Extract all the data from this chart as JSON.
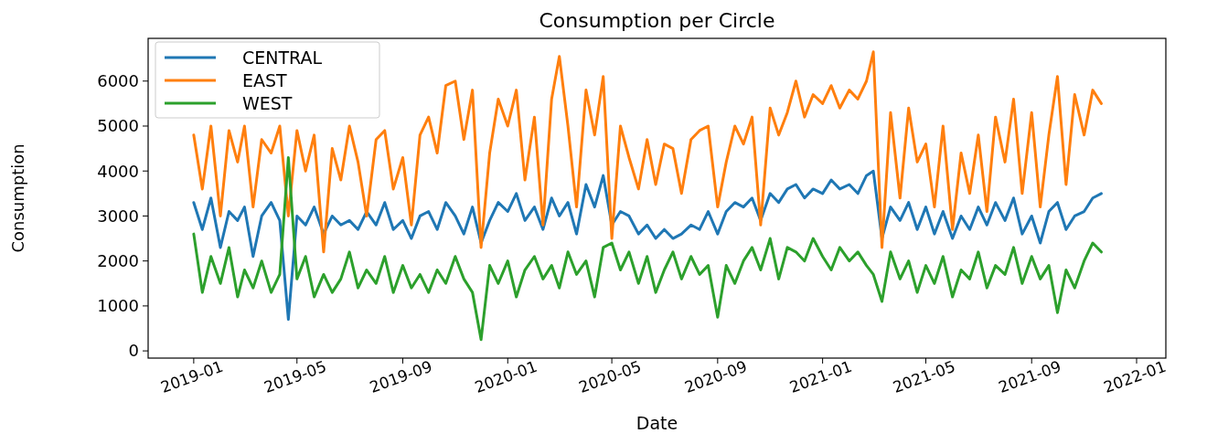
{
  "chart_data": {
    "type": "line",
    "title": "Consumption per Circle",
    "xlabel": "Date",
    "ylabel": "Consumption",
    "x": [
      "2019-01-01",
      "2019-01-11",
      "2019-01-21",
      "2019-02-01",
      "2019-02-11",
      "2019-02-21",
      "2019-03-01",
      "2019-03-11",
      "2019-03-21",
      "2019-04-01",
      "2019-04-11",
      "2019-04-21",
      "2019-05-01",
      "2019-05-11",
      "2019-05-21",
      "2019-06-01",
      "2019-06-11",
      "2019-06-21",
      "2019-07-01",
      "2019-07-11",
      "2019-07-21",
      "2019-08-01",
      "2019-08-11",
      "2019-08-21",
      "2019-09-01",
      "2019-09-11",
      "2019-09-21",
      "2019-10-01",
      "2019-10-11",
      "2019-10-21",
      "2019-11-01",
      "2019-11-11",
      "2019-11-21",
      "2019-12-01",
      "2019-12-11",
      "2019-12-21",
      "2020-01-01",
      "2020-01-11",
      "2020-01-21",
      "2020-02-01",
      "2020-02-11",
      "2020-02-21",
      "2020-03-01",
      "2020-03-11",
      "2020-03-21",
      "2020-04-01",
      "2020-04-11",
      "2020-04-21",
      "2020-05-01",
      "2020-05-11",
      "2020-05-21",
      "2020-06-01",
      "2020-06-11",
      "2020-06-21",
      "2020-07-01",
      "2020-07-11",
      "2020-07-21",
      "2020-08-01",
      "2020-08-11",
      "2020-08-21",
      "2020-09-01",
      "2020-09-11",
      "2020-09-21",
      "2020-10-01",
      "2020-10-11",
      "2020-10-21",
      "2020-11-01",
      "2020-11-11",
      "2020-11-21",
      "2020-12-01",
      "2020-12-11",
      "2020-12-21",
      "2021-01-01",
      "2021-01-11",
      "2021-01-21",
      "2021-02-01",
      "2021-02-11",
      "2021-02-21",
      "2021-03-01",
      "2021-03-11",
      "2021-03-21",
      "2021-04-01",
      "2021-04-11",
      "2021-04-21",
      "2021-05-01",
      "2021-05-11",
      "2021-05-21",
      "2021-06-01",
      "2021-06-11",
      "2021-06-21",
      "2021-07-01",
      "2021-07-11",
      "2021-07-21",
      "2021-08-01",
      "2021-08-11",
      "2021-08-21",
      "2021-09-01",
      "2021-09-11",
      "2021-09-21",
      "2021-10-01",
      "2021-10-11",
      "2021-10-21",
      "2021-11-01",
      "2021-11-11",
      "2021-11-21"
    ],
    "series": [
      {
        "name": "CENTRAL",
        "color": "#1f77b4",
        "values": [
          3300,
          2700,
          3400,
          2300,
          3100,
          2900,
          3200,
          2100,
          3000,
          3300,
          2900,
          700,
          3000,
          2800,
          3200,
          2600,
          3000,
          2800,
          2900,
          2700,
          3100,
          2800,
          3300,
          2700,
          2900,
          2500,
          3000,
          3100,
          2700,
          3300,
          3000,
          2600,
          3200,
          2400,
          2900,
          3300,
          3100,
          3500,
          2900,
          3200,
          2700,
          3400,
          3000,
          3300,
          2600,
          3700,
          3200,
          3900,
          2800,
          3100,
          3000,
          2600,
          2800,
          2500,
          2700,
          2500,
          2600,
          2800,
          2700,
          3100,
          2600,
          3100,
          3300,
          3200,
          3400,
          2900,
          3500,
          3300,
          3600,
          3700,
          3400,
          3600,
          3500,
          3800,
          3600,
          3700,
          3500,
          3900,
          4000,
          2500,
          3200,
          2900,
          3300,
          2700,
          3200,
          2600,
          3100,
          2500,
          3000,
          2700,
          3200,
          2800,
          3300,
          2900,
          3400,
          2600,
          3000,
          2400,
          3100,
          3300,
          2700,
          3000,
          3100,
          3400,
          3500
        ]
      },
      {
        "name": "EAST",
        "color": "#ff7f0e",
        "values": [
          4800,
          3600,
          5000,
          3000,
          4900,
          4200,
          5000,
          3200,
          4700,
          4400,
          5000,
          3000,
          4900,
          4000,
          4800,
          2200,
          4500,
          3800,
          5000,
          4200,
          3000,
          4700,
          4900,
          3600,
          4300,
          2800,
          4800,
          5200,
          4400,
          5900,
          6000,
          4700,
          5800,
          2300,
          4400,
          5600,
          5000,
          5800,
          3800,
          5200,
          2800,
          5600,
          6550,
          5000,
          3200,
          5800,
          4800,
          6100,
          2500,
          5000,
          4300,
          3600,
          4700,
          3700,
          4600,
          4500,
          3500,
          4700,
          4900,
          5000,
          3200,
          4200,
          5000,
          4600,
          5200,
          2800,
          5400,
          4800,
          5300,
          6000,
          5200,
          5700,
          5500,
          5900,
          5400,
          5800,
          5600,
          6000,
          6650,
          2300,
          5300,
          3400,
          5400,
          4200,
          4600,
          3200,
          5000,
          2700,
          4400,
          3500,
          4800,
          3100,
          5200,
          4200,
          5600,
          3500,
          5300,
          3200,
          4800,
          6100,
          3700,
          5700,
          4800,
          5800,
          5500
        ]
      },
      {
        "name": "WEST",
        "color": "#2ca02c",
        "values": [
          2600,
          1300,
          2100,
          1500,
          2300,
          1200,
          1800,
          1400,
          2000,
          1300,
          1700,
          4300,
          1600,
          2100,
          1200,
          1700,
          1300,
          1600,
          2200,
          1400,
          1800,
          1500,
          2100,
          1300,
          1900,
          1400,
          1700,
          1300,
          1800,
          1500,
          2100,
          1600,
          1300,
          250,
          1900,
          1500,
          2000,
          1200,
          1800,
          2100,
          1600,
          1900,
          1400,
          2200,
          1700,
          2000,
          1200,
          2300,
          2400,
          1800,
          2200,
          1500,
          2100,
          1300,
          1800,
          2200,
          1600,
          2100,
          1700,
          1900,
          750,
          1900,
          1500,
          2000,
          2300,
          1800,
          2500,
          1600,
          2300,
          2200,
          2000,
          2500,
          2100,
          1800,
          2300,
          2000,
          2200,
          1900,
          1700,
          1100,
          2200,
          1600,
          2000,
          1300,
          1900,
          1500,
          2100,
          1200,
          1800,
          1600,
          2200,
          1400,
          1900,
          1700,
          2300,
          1500,
          2100,
          1600,
          1900,
          850,
          1800,
          1400,
          2000,
          2400,
          2200
        ]
      }
    ],
    "xlim": [
      "2018-11-09",
      "2022-02-04"
    ],
    "xticks": [
      "2019-01",
      "2019-05",
      "2019-09",
      "2020-01",
      "2020-05",
      "2020-09",
      "2021-01",
      "2021-05",
      "2021-09",
      "2022-01"
    ],
    "ylim": [
      -160,
      6950
    ],
    "yticks": [
      0,
      1000,
      2000,
      3000,
      4000,
      5000,
      6000
    ],
    "legend": "top left",
    "grid": false,
    "line_style": "solid",
    "marker": "none"
  }
}
